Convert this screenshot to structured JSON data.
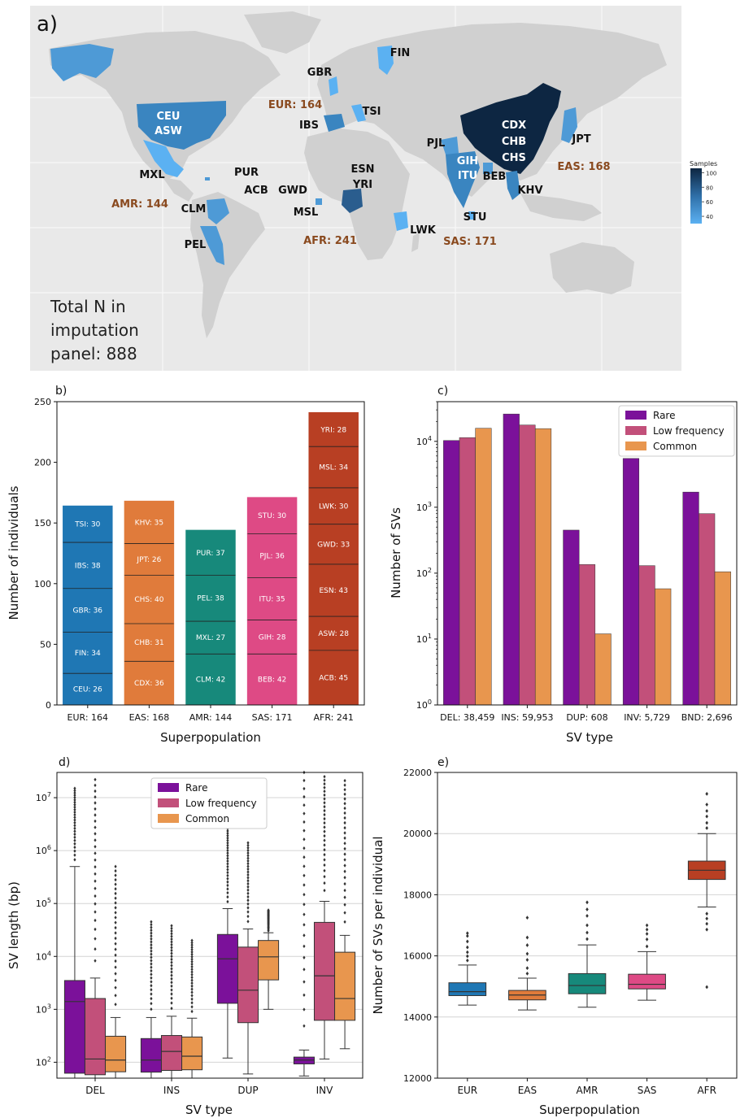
{
  "panel_labels": {
    "a": "a)",
    "b": "b)",
    "c": "c)",
    "d": "d)",
    "e": "e)"
  },
  "map": {
    "total_lines": [
      "Total N in",
      "imputation",
      "panel: 888"
    ],
    "colorbar": {
      "title": "Samples",
      "ticks": [
        100,
        80,
        60,
        40
      ],
      "min": 30,
      "max": 106
    },
    "colors": {
      "ocean": "#ffffff",
      "bg": "#e9e9e9",
      "land": "#d0d0d0",
      "low": "#5bb1f2",
      "high": "#0d2642",
      "superpop_text": "#8a4a1f"
    },
    "population_labels": [
      "FIN",
      "GBR",
      "TSI",
      "IBS",
      "CEU",
      "ASW",
      "MXL",
      "PUR",
      "ACB",
      "GWD",
      "MSL",
      "CLM",
      "PEL",
      "ESN",
      "YRI",
      "LWK",
      "PJL",
      "GIH",
      "ITU",
      "BEB",
      "STU",
      "CDX",
      "CHB",
      "CHS",
      "KHV",
      "JPT"
    ],
    "superpop_labels": [
      "EUR: 164",
      "AMR: 144",
      "AFR: 241",
      "SAS: 171",
      "EAS: 168"
    ]
  },
  "chart_data": [
    {
      "panel": "b",
      "type": "bar",
      "stacked": true,
      "xlabel": "Superpopulation",
      "ylabel": "Number of individuals",
      "ylim": [
        0,
        250
      ],
      "yticks": [
        0,
        50,
        100,
        150,
        200,
        250
      ],
      "categories": [
        "EUR: 164",
        "EAS: 168",
        "AMR: 144",
        "SAS: 171",
        "AFR: 241"
      ],
      "colors": [
        "#1f77b4",
        "#e07b3b",
        "#17897b",
        "#de4a85",
        "#b83f23"
      ],
      "stacks": [
        [
          {
            "label": "CEU: 26",
            "value": 26
          },
          {
            "label": "FIN: 34",
            "value": 34
          },
          {
            "label": "GBR: 36",
            "value": 36
          },
          {
            "label": "IBS: 38",
            "value": 38
          },
          {
            "label": "TSI: 30",
            "value": 30
          }
        ],
        [
          {
            "label": "CDX: 36",
            "value": 36
          },
          {
            "label": "CHB: 31",
            "value": 31
          },
          {
            "label": "CHS: 40",
            "value": 40
          },
          {
            "label": "JPT: 26",
            "value": 26
          },
          {
            "label": "KHV: 35",
            "value": 35
          }
        ],
        [
          {
            "label": "CLM: 42",
            "value": 42
          },
          {
            "label": "MXL: 27",
            "value": 27
          },
          {
            "label": "PEL: 38",
            "value": 38
          },
          {
            "label": "PUR: 37",
            "value": 37
          }
        ],
        [
          {
            "label": "BEB: 42",
            "value": 42
          },
          {
            "label": "GIH: 28",
            "value": 28
          },
          {
            "label": "ITU: 35",
            "value": 35
          },
          {
            "label": "PJL: 36",
            "value": 36
          },
          {
            "label": "STU: 30",
            "value": 30
          }
        ],
        [
          {
            "label": "ACB: 45",
            "value": 45
          },
          {
            "label": "ASW: 28",
            "value": 28
          },
          {
            "label": "ESN: 43",
            "value": 43
          },
          {
            "label": "GWD: 33",
            "value": 33
          },
          {
            "label": "LWK: 30",
            "value": 30
          },
          {
            "label": "MSL: 34",
            "value": 34
          },
          {
            "label": "YRI: 28",
            "value": 28
          }
        ]
      ]
    },
    {
      "panel": "c",
      "type": "bar",
      "log_y": true,
      "xlabel": "SV type",
      "ylabel": "Number of SVs",
      "ylim": [
        1,
        40000
      ],
      "yticks": [
        "10^0",
        "10^1",
        "10^2",
        "10^3",
        "10^4"
      ],
      "categories": [
        "DEL: 38,459",
        "INS: 59,953",
        "DUP: 608",
        "INV: 5,729",
        "BND: 2,696"
      ],
      "series": [
        {
          "name": "Rare",
          "color": "#7b119a",
          "values": [
            10300,
            26000,
            450,
            5500,
            1700
          ]
        },
        {
          "name": "Low frequency",
          "color": "#c2507a",
          "values": [
            11400,
            17700,
            135,
            130,
            800
          ]
        },
        {
          "name": "Common",
          "color": "#e8964e",
          "values": [
            15800,
            15600,
            12,
            58,
            105
          ]
        }
      ],
      "legend": "top-right"
    },
    {
      "panel": "d",
      "type": "box",
      "log_y": true,
      "xlabel": "SV type",
      "ylabel": "SV length (bp)",
      "ylim": [
        50,
        30000000
      ],
      "yticks": [
        "10^2",
        "10^3",
        "10^4",
        "10^5",
        "10^6",
        "10^7"
      ],
      "categories": [
        "DEL",
        "INS",
        "DUP",
        "INV"
      ],
      "series_names": [
        "Rare",
        "Low frequency",
        "Common"
      ],
      "series_colors": [
        "#7b119a",
        "#c2507a",
        "#e8964e"
      ],
      "legend": "top-center",
      "boxes": [
        [
          {
            "q1": 62,
            "med": 1400,
            "q3": 3500,
            "wlo": 50,
            "whi": 500000,
            "fmax": 15000000
          },
          {
            "q1": 58,
            "med": 115,
            "q3": 1600,
            "wlo": 50,
            "whi": 3900,
            "fmax": 22000000
          },
          {
            "q1": 66,
            "med": 110,
            "q3": 310,
            "wlo": 50,
            "whi": 700,
            "fmax": 500000
          }
        ],
        [
          {
            "q1": 65,
            "med": 110,
            "q3": 280,
            "wlo": 50,
            "whi": 700,
            "fmax": 45000
          },
          {
            "q1": 70,
            "med": 160,
            "q3": 320,
            "wlo": 50,
            "whi": 740,
            "fmax": 38000
          },
          {
            "q1": 72,
            "med": 130,
            "q3": 300,
            "wlo": 50,
            "whi": 680,
            "fmax": 20000
          }
        ],
        [
          {
            "q1": 1300,
            "med": 9000,
            "q3": 26000,
            "wlo": 120,
            "whi": 80000,
            "fmax": 2600000
          },
          {
            "q1": 560,
            "med": 2300,
            "q3": 15000,
            "wlo": 60,
            "whi": 33000,
            "fmax": 1400000
          },
          {
            "q1": 3600,
            "med": 9800,
            "q3": 20000,
            "wlo": 1000,
            "whi": 28000,
            "fmax": 75000
          }
        ],
        [
          {
            "q1": 93,
            "med": 110,
            "q3": 125,
            "wlo": 55,
            "whi": 170,
            "fmax": 30000000
          },
          {
            "q1": 620,
            "med": 4300,
            "q3": 44000,
            "wlo": 115,
            "whi": 110000,
            "fmax": 25000000
          },
          {
            "q1": 620,
            "med": 1600,
            "q3": 12000,
            "wlo": 180,
            "whi": 25000,
            "fmax": 21000000
          }
        ]
      ]
    },
    {
      "panel": "e",
      "type": "box",
      "xlabel": "Superpopulation",
      "ylabel": "Number of SVs per individual",
      "ylim": [
        12000,
        22000
      ],
      "yticks": [
        12000,
        14000,
        16000,
        18000,
        20000,
        22000
      ],
      "categories": [
        "EUR",
        "EAS",
        "AMR",
        "SAS",
        "AFR"
      ],
      "colors": [
        "#1f77b4",
        "#e07b3b",
        "#17897b",
        "#de4a85",
        "#b83f23"
      ],
      "boxes": [
        {
          "q1": 14700,
          "med": 14830,
          "q3": 15120,
          "wlo": 14390,
          "whi": 15700,
          "outliers": [
            15850,
            15990,
            16120,
            16280,
            16470,
            16650,
            16740
          ]
        },
        {
          "q1": 14560,
          "med": 14720,
          "q3": 14870,
          "wlo": 14230,
          "whi": 15270,
          "outliers": [
            15420,
            15600,
            15870,
            16070,
            16350,
            16600,
            17250
          ]
        },
        {
          "q1": 14760,
          "med": 15030,
          "q3": 15420,
          "wlo": 14320,
          "whi": 16360,
          "outliers": [
            16550,
            16760,
            17000,
            17310,
            17520,
            17750
          ]
        },
        {
          "q1": 14920,
          "med": 15070,
          "q3": 15400,
          "wlo": 14550,
          "whi": 16140,
          "outliers": [
            16310,
            16540,
            16720,
            16860,
            17000
          ]
        },
        {
          "q1": 18500,
          "med": 18800,
          "q3": 19100,
          "wlo": 17600,
          "whi": 20000,
          "outliers": [
            14980,
            16860,
            17050,
            17220,
            17380,
            20180,
            20350,
            20560,
            20740,
            20950,
            21300
          ]
        }
      ]
    }
  ]
}
